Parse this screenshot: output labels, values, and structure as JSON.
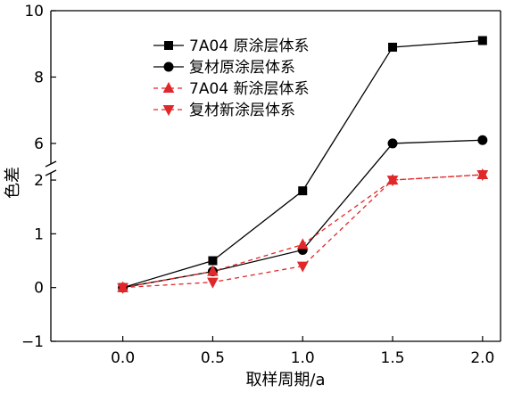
{
  "chart_data": {
    "type": "line",
    "xlabel": "取样周期/a",
    "ylabel": "色差",
    "x_ticks": [
      "0.0",
      "0.5",
      "1.0",
      "1.5",
      "2.0"
    ],
    "y_ticks_lower": [
      "−1",
      "0",
      "1",
      "2"
    ],
    "y_ticks_upper": [
      "6",
      "8",
      "10"
    ],
    "x_range": [
      -0.4,
      2.1
    ],
    "y_lower_range": [
      -1,
      2.2
    ],
    "y_upper_range": [
      5.3,
      10
    ],
    "axis_break": true,
    "grid": false,
    "legend_position": "top-left",
    "series": [
      {
        "name": "7A04 原涂层体系",
        "x": [
          0.0,
          0.5,
          1.0,
          1.5,
          2.0
        ],
        "y": [
          0.0,
          0.5,
          1.8,
          8.9,
          9.1
        ],
        "color": "#000000",
        "dash": "solid",
        "marker": "square"
      },
      {
        "name": "复材原涂层体系",
        "x": [
          0.0,
          0.5,
          1.0,
          1.5,
          2.0
        ],
        "y": [
          0.0,
          0.3,
          0.7,
          6.0,
          6.1
        ],
        "color": "#000000",
        "dash": "solid",
        "marker": "circle"
      },
      {
        "name": "7A04 新涂层体系",
        "x": [
          0.0,
          0.5,
          1.0,
          1.5,
          2.0
        ],
        "y": [
          0.0,
          0.3,
          0.8,
          2.0,
          2.1
        ],
        "color": "#e0282a",
        "dash": "dashed",
        "marker": "triangle-up"
      },
      {
        "name": "复材新涂层体系",
        "x": [
          0.0,
          0.5,
          1.0,
          1.5,
          2.0
        ],
        "y": [
          0.0,
          0.1,
          0.4,
          2.0,
          2.1
        ],
        "color": "#e0282a",
        "dash": "dashed",
        "marker": "triangle-down"
      }
    ]
  }
}
